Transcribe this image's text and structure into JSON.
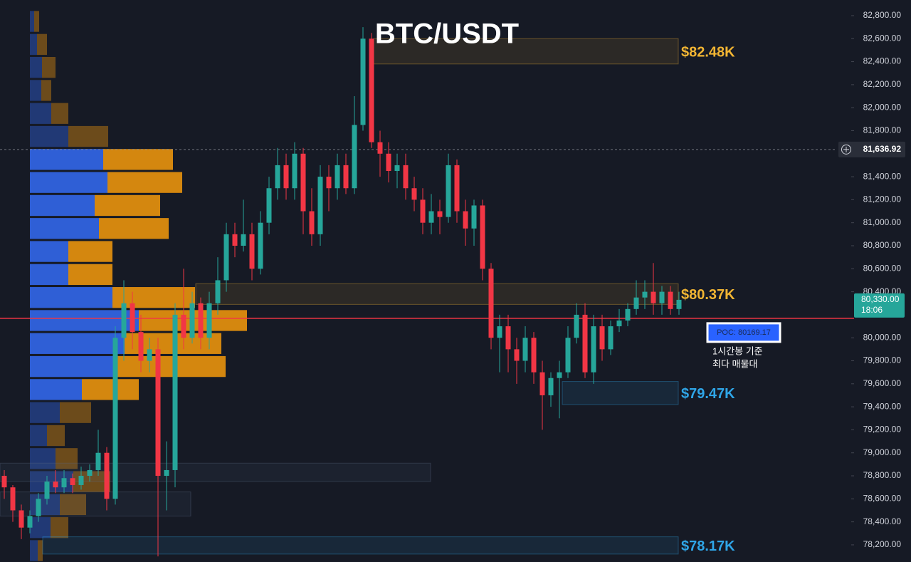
{
  "chart_data": {
    "type": "candlestick",
    "title": "BTC/USDT",
    "up_color": "#26a69a",
    "down_color": "#f23645",
    "ylim": [
      78051,
      82936
    ],
    "yticks": [
      {
        "value": 78200,
        "label": "78,200.00"
      },
      {
        "value": 78400,
        "label": "78,400.00"
      },
      {
        "value": 78600,
        "label": "78,600.00"
      },
      {
        "value": 78800,
        "label": "78,800.00"
      },
      {
        "value": 79000,
        "label": "79,000.00"
      },
      {
        "value": 79200,
        "label": "79,200.00"
      },
      {
        "value": 79400,
        "label": "79,400.00"
      },
      {
        "value": 79600,
        "label": "79,600.00"
      },
      {
        "value": 79800,
        "label": "79,800.00"
      },
      {
        "value": 80000,
        "label": "80,000.00"
      },
      {
        "value": 80400,
        "label": "80,400.00"
      },
      {
        "value": 80600,
        "label": "80,600.00"
      },
      {
        "value": 80800,
        "label": "80,800.00"
      },
      {
        "value": 81000,
        "label": "81,000.00"
      },
      {
        "value": 81200,
        "label": "81,200.00"
      },
      {
        "value": 81400,
        "label": "81,400.00"
      },
      {
        "value": 81800,
        "label": "81,800.00"
      },
      {
        "value": 82000,
        "label": "82,000.00"
      },
      {
        "value": 82200,
        "label": "82,200.00"
      },
      {
        "value": 82400,
        "label": "82,400.00"
      },
      {
        "value": 82600,
        "label": "82,600.00"
      },
      {
        "value": 82800,
        "label": "82,800.00"
      }
    ],
    "ohlc": [
      [
        78800,
        78850,
        78600,
        78700
      ],
      [
        78700,
        78720,
        78400,
        78500
      ],
      [
        78500,
        78550,
        78250,
        78350
      ],
      [
        78350,
        78500,
        78300,
        78450
      ],
      [
        78450,
        78650,
        78400,
        78600
      ],
      [
        78600,
        78800,
        78550,
        78750
      ],
      [
        78750,
        78850,
        78650,
        78700
      ],
      [
        78700,
        78850,
        78650,
        78780
      ],
      [
        78780,
        78820,
        78650,
        78720
      ],
      [
        78720,
        78880,
        78680,
        78800
      ],
      [
        78800,
        78900,
        78750,
        78850
      ],
      [
        78850,
        79200,
        78800,
        79000
      ],
      [
        79000,
        79050,
        78500,
        78600
      ],
      [
        78600,
        80100,
        78550,
        80000
      ],
      [
        80000,
        80500,
        79800,
        80300
      ],
      [
        80300,
        80400,
        79900,
        80050
      ],
      [
        80050,
        80200,
        79700,
        79800
      ],
      [
        79800,
        80000,
        79700,
        79900
      ],
      [
        79900,
        80000,
        78100,
        78800
      ],
      [
        78800,
        79100,
        78500,
        78850
      ],
      [
        78850,
        80300,
        78700,
        80200
      ],
      [
        80200,
        80600,
        79900,
        80000
      ],
      [
        80000,
        80400,
        79950,
        80300
      ],
      [
        80300,
        80350,
        79900,
        80000
      ],
      [
        80000,
        80400,
        79900,
        80300
      ],
      [
        80300,
        80700,
        80200,
        80500
      ],
      [
        80500,
        81000,
        80400,
        80900
      ],
      [
        80900,
        81000,
        80700,
        80800
      ],
      [
        80800,
        81200,
        80750,
        80900
      ],
      [
        80900,
        81000,
        80500,
        80600
      ],
      [
        80600,
        81100,
        80550,
        81000
      ],
      [
        81000,
        81400,
        80900,
        81300
      ],
      [
        81300,
        81650,
        81200,
        81500
      ],
      [
        81500,
        81600,
        81200,
        81300
      ],
      [
        81300,
        81700,
        81200,
        81600
      ],
      [
        81600,
        81650,
        80900,
        81100
      ],
      [
        81100,
        81300,
        80800,
        80900
      ],
      [
        80900,
        81500,
        80800,
        81400
      ],
      [
        81400,
        81500,
        81100,
        81300
      ],
      [
        81300,
        81600,
        81200,
        81500
      ],
      [
        81500,
        81600,
        81250,
        81300
      ],
      [
        81300,
        82100,
        81250,
        81850
      ],
      [
        81850,
        82700,
        81800,
        82600
      ],
      [
        82600,
        82650,
        81650,
        81700
      ],
      [
        81700,
        81800,
        81400,
        81600
      ],
      [
        81600,
        81700,
        81350,
        81450
      ],
      [
        81450,
        81600,
        81300,
        81500
      ],
      [
        81500,
        81600,
        81200,
        81300
      ],
      [
        81300,
        81400,
        81100,
        81200
      ],
      [
        81200,
        81300,
        80900,
        81000
      ],
      [
        81000,
        81250,
        80900,
        81100
      ],
      [
        81100,
        81200,
        80900,
        81050
      ],
      [
        81050,
        81600,
        81000,
        81500
      ],
      [
        81500,
        81550,
        81000,
        81100
      ],
      [
        81100,
        81200,
        80800,
        80950
      ],
      [
        80950,
        81200,
        80800,
        81150
      ],
      [
        81150,
        81200,
        80500,
        80600
      ],
      [
        80600,
        80650,
        79900,
        80000
      ],
      [
        80000,
        80200,
        79700,
        80100
      ],
      [
        80100,
        80200,
        79700,
        79900
      ],
      [
        79900,
        80000,
        79600,
        79800
      ],
      [
        79800,
        80100,
        79700,
        80000
      ],
      [
        80000,
        80050,
        79600,
        79700
      ],
      [
        79700,
        79800,
        79200,
        79500
      ],
      [
        79500,
        79700,
        79400,
        79650
      ],
      [
        79650,
        79800,
        79300,
        79700
      ],
      [
        79700,
        80100,
        79650,
        80000
      ],
      [
        80000,
        80300,
        79950,
        80200
      ],
      [
        80200,
        80300,
        79650,
        79700
      ],
      [
        79700,
        80200,
        79600,
        80100
      ],
      [
        80100,
        80200,
        79800,
        79900
      ],
      [
        79900,
        80150,
        79850,
        80100
      ],
      [
        80100,
        80250,
        80050,
        80150
      ],
      [
        80150,
        80300,
        80100,
        80250
      ],
      [
        80250,
        80500,
        80200,
        80350
      ],
      [
        80350,
        80500,
        80250,
        80400
      ],
      [
        80400,
        80650,
        80200,
        80300
      ],
      [
        80300,
        80450,
        80200,
        80400
      ],
      [
        80400,
        80450,
        80200,
        80250
      ],
      [
        80250,
        80400,
        80200,
        80330
      ]
    ],
    "volume_profile": {
      "prices": [
        82750,
        82550,
        82350,
        82150,
        81950,
        81750,
        81550,
        81350,
        81150,
        80950,
        80750,
        80550,
        80350,
        80150,
        79950,
        79750,
        79550,
        79350,
        79150,
        78950,
        78750,
        78550,
        78350,
        78150
      ],
      "buy": [
        6,
        10,
        17,
        16,
        30,
        54,
        103,
        109,
        91,
        97,
        54,
        54,
        116,
        153,
        133,
        123,
        73,
        42,
        24,
        36,
        61,
        42,
        29,
        11
      ],
      "sell": [
        7,
        14,
        19,
        14,
        24,
        56,
        98,
        105,
        92,
        98,
        62,
        62,
        116,
        152,
        136,
        152,
        80,
        44,
        25,
        31,
        52,
        37,
        25,
        7
      ],
      "buy_color": "#2f5fd6",
      "sell_color": "#d4870f"
    },
    "zones": [
      {
        "range": [
          82380,
          82600
        ],
        "label": "$82.48K",
        "color": "#f2b533"
      },
      {
        "range": [
          80290,
          80470
        ],
        "label": "$80.37K",
        "color": "#f2b533"
      },
      {
        "range": [
          79420,
          79620
        ],
        "label": "$79.47K",
        "color": "#2fa6e8"
      },
      {
        "range": [
          78120,
          78270
        ],
        "label": "$78.17K",
        "color": "#2fa6e8"
      },
      {
        "range": [
          78750,
          78910
        ],
        "color": "#5d6b85"
      },
      {
        "range": [
          78450,
          78660
        ],
        "color": "#5d6b85"
      }
    ],
    "poc": {
      "value": 80169.17,
      "label": "POC: 80169.17",
      "color": "#f23645"
    },
    "poc_note": [
      "1시간봉 기준",
      "최다 매물대"
    ],
    "crosshair": {
      "value": 81636.92,
      "label": "81,636.92"
    },
    "last_price": {
      "value": 80330,
      "label": "80,330.00",
      "countdown": "18:06"
    }
  }
}
